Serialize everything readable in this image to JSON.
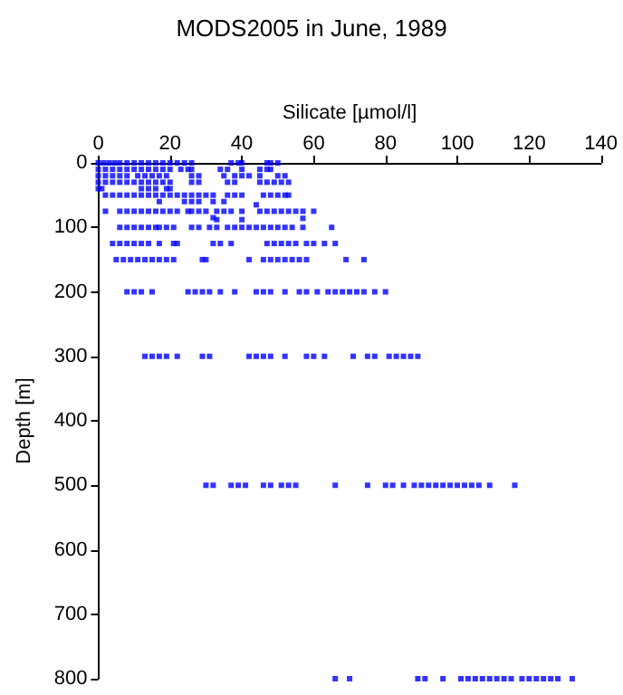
{
  "chart_data": {
    "type": "scatter",
    "title": "MODS2005 in June, 1989",
    "xlabel": "Silicate [µmol/l]",
    "ylabel": "Depth [m]",
    "xlim": [
      0,
      140
    ],
    "xticks": [
      0,
      20,
      40,
      60,
      80,
      100,
      120,
      140
    ],
    "ylim": [
      800,
      0
    ],
    "yticks": [
      0,
      100,
      200,
      300,
      400,
      500,
      600,
      700,
      800
    ],
    "grid": false,
    "marker": "square",
    "series": [
      {
        "color": "#0000ff",
        "x": [
          0,
          1.5,
          3,
          4.5,
          6,
          8,
          10,
          12,
          14,
          16,
          18,
          20,
          22,
          24,
          26,
          37,
          39,
          40,
          47,
          48,
          50,
          0,
          2,
          4,
          6,
          8,
          10,
          12,
          14,
          16,
          18,
          20,
          23,
          25,
          26,
          34,
          36,
          40,
          45,
          47,
          48,
          0,
          2,
          4,
          6,
          8,
          11,
          13,
          15,
          17,
          19,
          26,
          28,
          35,
          38,
          40,
          42,
          45,
          50,
          52,
          0,
          2,
          4,
          6,
          8,
          10,
          12,
          14,
          16,
          18,
          20,
          26,
          28,
          36,
          38,
          45,
          47,
          49,
          51,
          53,
          0,
          1,
          12,
          14,
          16,
          19,
          20,
          2,
          4,
          6,
          8,
          10,
          12,
          14,
          16,
          18,
          20,
          22,
          24,
          26,
          28,
          30,
          32,
          36,
          38,
          40,
          46,
          48,
          50,
          52,
          53,
          17,
          24,
          26,
          28,
          32,
          35,
          44,
          2,
          6,
          8,
          10,
          12,
          14,
          16,
          18,
          20,
          22,
          25,
          26,
          28,
          30,
          33,
          35,
          37,
          40,
          45,
          47,
          49,
          51,
          53,
          55,
          57,
          60,
          32,
          33,
          40,
          57,
          6,
          8,
          10,
          12,
          14,
          16,
          17,
          19,
          21,
          26,
          28,
          31,
          33,
          36,
          38,
          40,
          42,
          44,
          46,
          48,
          50,
          52,
          54,
          57,
          65,
          4,
          6,
          8,
          10,
          12,
          14,
          17,
          21,
          22,
          32,
          34,
          37,
          47,
          49,
          51,
          53,
          55,
          58,
          60,
          63,
          66,
          5,
          7,
          9,
          11,
          13,
          15,
          17,
          19,
          21,
          29,
          30,
          42,
          46,
          48,
          50,
          52,
          54,
          56,
          58,
          69,
          74,
          8,
          10,
          12,
          15,
          25,
          27,
          29,
          31,
          34,
          38,
          44,
          46,
          48,
          52,
          56,
          58,
          61,
          64,
          66,
          68,
          70,
          72,
          74,
          77,
          80,
          13,
          15,
          17,
          19,
          22,
          29,
          31,
          42,
          44,
          46,
          48,
          52,
          58,
          60,
          63,
          71,
          75,
          77,
          81,
          83,
          85,
          87,
          89,
          30,
          32,
          37,
          39,
          41,
          46,
          48,
          51,
          53,
          55,
          66,
          75,
          80,
          82,
          85,
          88,
          90,
          92,
          94,
          96,
          98,
          100,
          102,
          104,
          106,
          109,
          116,
          66,
          70,
          89,
          91,
          96,
          101,
          103,
          105,
          107,
          109,
          111,
          113,
          115,
          118,
          120,
          122,
          124,
          126,
          128,
          132
        ],
        "values": [
          0,
          0,
          0,
          0,
          0,
          0,
          0,
          0,
          0,
          0,
          0,
          0,
          0,
          0,
          0,
          0,
          0,
          0,
          0,
          0,
          0,
          10,
          10,
          10,
          10,
          10,
          10,
          10,
          10,
          10,
          10,
          10,
          10,
          10,
          10,
          10,
          10,
          10,
          10,
          10,
          10,
          20,
          20,
          20,
          20,
          20,
          20,
          20,
          20,
          20,
          20,
          20,
          20,
          20,
          20,
          20,
          20,
          20,
          20,
          20,
          30,
          30,
          30,
          30,
          30,
          30,
          30,
          30,
          30,
          30,
          30,
          30,
          30,
          30,
          30,
          30,
          30,
          30,
          30,
          30,
          40,
          40,
          40,
          40,
          40,
          40,
          40,
          50,
          50,
          50,
          50,
          50,
          50,
          50,
          50,
          50,
          50,
          50,
          50,
          50,
          50,
          50,
          50,
          50,
          50,
          50,
          50,
          50,
          50,
          50,
          50,
          60,
          60,
          60,
          60,
          60,
          60,
          65,
          75,
          75,
          75,
          75,
          75,
          75,
          75,
          75,
          75,
          75,
          75,
          75,
          75,
          75,
          75,
          75,
          75,
          75,
          75,
          75,
          75,
          75,
          75,
          75,
          75,
          75,
          85,
          88,
          88,
          86,
          100,
          100,
          100,
          100,
          100,
          100,
          100,
          100,
          100,
          100,
          100,
          100,
          100,
          100,
          100,
          100,
          100,
          100,
          100,
          100,
          100,
          100,
          100,
          100,
          100,
          125,
          125,
          125,
          125,
          125,
          125,
          125,
          125,
          125,
          125,
          125,
          125,
          125,
          125,
          125,
          125,
          125,
          125,
          125,
          125,
          125,
          150,
          150,
          150,
          150,
          150,
          150,
          150,
          150,
          150,
          150,
          150,
          150,
          150,
          150,
          150,
          150,
          150,
          150,
          150,
          150,
          150,
          200,
          200,
          200,
          200,
          200,
          200,
          200,
          200,
          200,
          200,
          200,
          200,
          200,
          200,
          200,
          200,
          200,
          200,
          200,
          200,
          200,
          200,
          200,
          200,
          200,
          300,
          300,
          300,
          300,
          300,
          300,
          300,
          300,
          300,
          300,
          300,
          300,
          300,
          300,
          300,
          300,
          300,
          300,
          300,
          300,
          300,
          300,
          300,
          500,
          500,
          500,
          500,
          500,
          500,
          500,
          500,
          500,
          500,
          500,
          500,
          500,
          500,
          500,
          500,
          500,
          500,
          500,
          500,
          500,
          500,
          500,
          500,
          500,
          500,
          500,
          800,
          800,
          800,
          800,
          800,
          800,
          800,
          800,
          800,
          800,
          800,
          800,
          800,
          800,
          800,
          800,
          800,
          800,
          800,
          800
        ]
      }
    ]
  }
}
